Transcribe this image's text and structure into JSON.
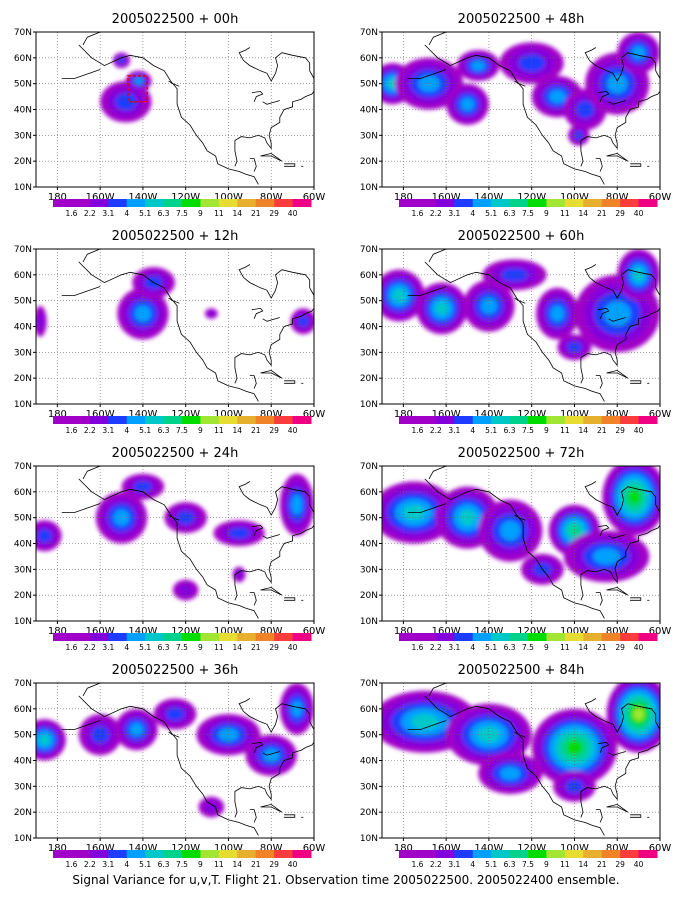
{
  "figure": {
    "caption": "Signal Variance for u,v,T. Flight 21. Observation time 2005022500. 2005022400 ensemble."
  },
  "colorbar": {
    "labels": [
      "1.6",
      "2.2",
      "3.1",
      "4",
      "5.1",
      "6.3",
      "7.5",
      "9",
      "11",
      "14",
      "21",
      "29",
      "40"
    ],
    "colors": [
      "#a000c8",
      "#8200dc",
      "#1e3cff",
      "#00a0ff",
      "#00c8c8",
      "#00d28c",
      "#00dc00",
      "#a0e632",
      "#e6dc32",
      "#e6af2d",
      "#f08228",
      "#fa3c3c",
      "#f00082"
    ]
  },
  "map": {
    "lat_ticks": [
      "10N",
      "20N",
      "30N",
      "40N",
      "50N",
      "60N",
      "70N"
    ],
    "lon_ticks": [
      "180",
      "160W",
      "140W",
      "120W",
      "100W",
      "80W",
      "60W"
    ],
    "extent": {
      "lon_min": -190,
      "lon_max": -60,
      "lat_min": 10,
      "lat_max": 70
    }
  },
  "chart_data": [
    {
      "type": "heatmap",
      "title": "2005022500 + 00h",
      "lead_hours": 0,
      "blobs": [
        [
          -148,
          43,
          12,
          8,
          2
        ],
        [
          -142,
          51,
          6,
          4,
          3
        ],
        [
          -150,
          59,
          4,
          3,
          2
        ]
      ],
      "target_region": {
        "lon": [
          -147,
          -138
        ],
        "lat": [
          43,
          53
        ]
      }
    },
    {
      "type": "heatmap",
      "title": "2005022500 + 48h",
      "lead_hours": 48,
      "blobs": [
        [
          -185,
          50,
          10,
          8,
          4
        ],
        [
          -168,
          50,
          16,
          10,
          3
        ],
        [
          -150,
          42,
          10,
          8,
          3
        ],
        [
          -145,
          57,
          10,
          6,
          3
        ],
        [
          -120,
          58,
          15,
          8,
          2
        ],
        [
          -108,
          45,
          12,
          8,
          3
        ],
        [
          -95,
          40,
          10,
          8,
          2
        ],
        [
          -80,
          50,
          15,
          12,
          3
        ],
        [
          -70,
          62,
          10,
          8,
          3
        ],
        [
          -98,
          30,
          5,
          4,
          2
        ]
      ]
    },
    {
      "type": "heatmap",
      "title": "2005022500 + 12h",
      "lead_hours": 12,
      "blobs": [
        [
          -140,
          45,
          12,
          10,
          3
        ],
        [
          -135,
          57,
          10,
          6,
          2
        ],
        [
          -188,
          42,
          3,
          6,
          1
        ],
        [
          -65,
          42,
          6,
          5,
          2
        ],
        [
          -108,
          45,
          3,
          2,
          1
        ]
      ]
    },
    {
      "type": "heatmap",
      "title": "2005022500 + 60h",
      "lead_hours": 60,
      "blobs": [
        [
          -182,
          52,
          12,
          10,
          4
        ],
        [
          -162,
          47,
          12,
          10,
          4
        ],
        [
          -140,
          48,
          12,
          10,
          3
        ],
        [
          -128,
          60,
          15,
          6,
          2
        ],
        [
          -108,
          45,
          10,
          10,
          3
        ],
        [
          -80,
          45,
          20,
          15,
          3
        ],
        [
          -70,
          60,
          10,
          10,
          4
        ],
        [
          -100,
          32,
          8,
          5,
          2
        ]
      ]
    },
    {
      "type": "heatmap",
      "title": "2005022500 + 24h",
      "lead_hours": 24,
      "blobs": [
        [
          -186,
          43,
          8,
          6,
          2
        ],
        [
          -150,
          50,
          12,
          10,
          3
        ],
        [
          -140,
          62,
          10,
          5,
          2
        ],
        [
          -120,
          50,
          10,
          6,
          2
        ],
        [
          -95,
          44,
          12,
          5,
          2
        ],
        [
          -68,
          55,
          8,
          12,
          3
        ],
        [
          -120,
          22,
          6,
          4,
          1
        ],
        [
          -95,
          28,
          3,
          3,
          1
        ]
      ]
    },
    {
      "type": "heatmap",
      "title": "2005022500 + 72h",
      "lead_hours": 72,
      "blobs": [
        [
          -175,
          52,
          20,
          12,
          4
        ],
        [
          -150,
          50,
          15,
          12,
          4
        ],
        [
          -130,
          45,
          15,
          12,
          3
        ],
        [
          -100,
          45,
          12,
          10,
          5
        ],
        [
          -72,
          58,
          15,
          15,
          6
        ],
        [
          -85,
          35,
          20,
          10,
          3
        ],
        [
          -115,
          30,
          10,
          6,
          2
        ]
      ]
    },
    {
      "type": "heatmap",
      "title": "2005022500 + 36h",
      "lead_hours": 36,
      "blobs": [
        [
          -186,
          48,
          10,
          8,
          4
        ],
        [
          -160,
          50,
          10,
          8,
          2
        ],
        [
          -143,
          52,
          10,
          8,
          3
        ],
        [
          -125,
          58,
          10,
          6,
          2
        ],
        [
          -100,
          50,
          15,
          8,
          3
        ],
        [
          -80,
          42,
          12,
          8,
          3
        ],
        [
          -68,
          60,
          8,
          10,
          3
        ],
        [
          -108,
          22,
          6,
          4,
          1
        ]
      ]
    },
    {
      "type": "heatmap",
      "title": "2005022500 + 84h",
      "lead_hours": 84,
      "blobs": [
        [
          -170,
          55,
          25,
          12,
          4
        ],
        [
          -140,
          50,
          20,
          12,
          4
        ],
        [
          -100,
          45,
          20,
          15,
          6
        ],
        [
          -70,
          58,
          15,
          15,
          7
        ],
        [
          -130,
          35,
          15,
          8,
          3
        ],
        [
          -100,
          30,
          10,
          6,
          2
        ]
      ]
    }
  ]
}
